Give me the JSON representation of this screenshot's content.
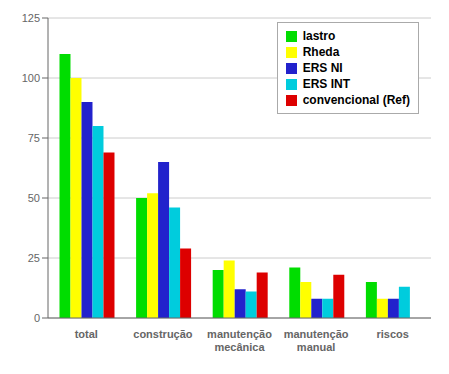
{
  "chart_data": {
    "type": "bar",
    "categories": [
      "total",
      "construção",
      "manutenção\nmecânica",
      "manutenção\nmanual",
      "riscos"
    ],
    "series": [
      {
        "name": "lastro",
        "color": "#00dd00",
        "values": [
          110,
          50,
          20,
          21,
          15
        ]
      },
      {
        "name": "Rheda",
        "color": "#ffff00",
        "values": [
          100,
          52,
          24,
          15,
          8
        ]
      },
      {
        "name": "ERS NI",
        "color": "#2222cc",
        "values": [
          90,
          65,
          12,
          8,
          8
        ]
      },
      {
        "name": "ERS INT",
        "color": "#00ccdd",
        "values": [
          80,
          46,
          11,
          8,
          13
        ]
      },
      {
        "name": "convencional (Ref)",
        "color": "#dd0000",
        "values": [
          69,
          29,
          19,
          18,
          0
        ]
      }
    ],
    "ylim": [
      0,
      125
    ],
    "yticks": [
      0,
      25,
      50,
      75,
      100,
      125
    ],
    "grid": true,
    "legend": "upper right"
  }
}
